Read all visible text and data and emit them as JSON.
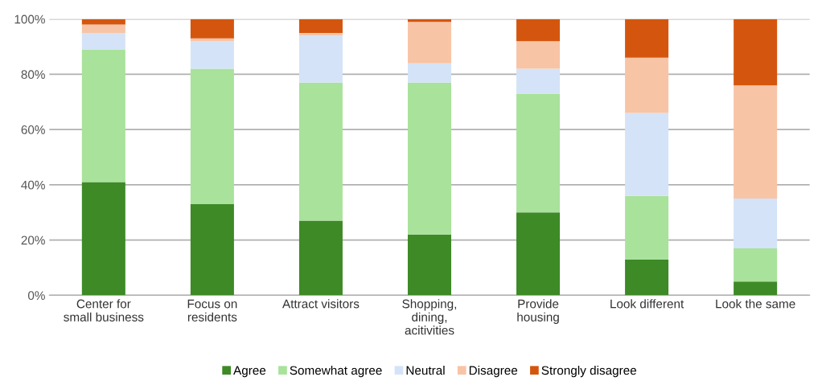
{
  "chart_data": {
    "type": "bar",
    "stacked": true,
    "categories": [
      "Center for\nsmall business",
      "Focus on\nresidents",
      "Attract visitors",
      "Shopping,\ndining,\nacitivities",
      "Provide\nhousing",
      "Look different",
      "Look the same"
    ],
    "series": [
      {
        "name": "Agree",
        "color": "#3d8a26",
        "values": [
          41,
          33,
          27,
          22,
          30,
          13,
          5
        ]
      },
      {
        "name": "Somewhat agree",
        "color": "#a9e29b",
        "values": [
          48,
          49,
          50,
          55,
          43,
          23,
          12
        ]
      },
      {
        "name": "Neutral",
        "color": "#d4e3f7",
        "values": [
          6,
          10,
          17,
          7,
          9,
          30,
          18
        ]
      },
      {
        "name": "Disagree",
        "color": "#f8c4a6",
        "values": [
          3,
          1,
          1,
          15,
          10,
          20,
          41
        ]
      },
      {
        "name": "Strongly disagree",
        "color": "#d4560e",
        "values": [
          2,
          7,
          5,
          1,
          8,
          14,
          24
        ]
      }
    ],
    "ylim": [
      0,
      100
    ],
    "yticks": [
      {
        "value": 0,
        "label": "0%"
      },
      {
        "value": 20,
        "label": "20%"
      },
      {
        "value": 40,
        "label": "40%"
      },
      {
        "value": 60,
        "label": "60%"
      },
      {
        "value": 80,
        "label": "80%"
      },
      {
        "value": 100,
        "label": "100%"
      }
    ],
    "grid": "y",
    "legend": "bottom"
  }
}
